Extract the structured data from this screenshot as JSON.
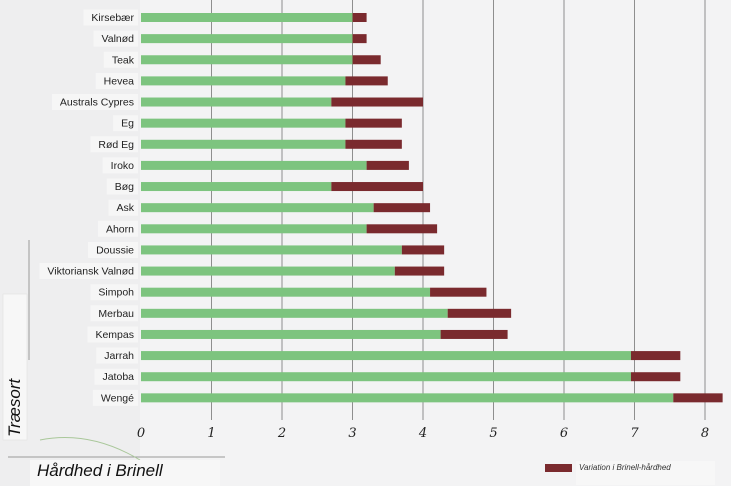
{
  "chart_data": {
    "type": "bar",
    "orientation": "horizontal",
    "stacked": true,
    "categories": [
      "Kirsebær",
      "Valnød",
      "Teak",
      "Hevea",
      "Australs Cypres",
      "Eg",
      "Rød Eg",
      "Iroko",
      "Bøg",
      "Ask",
      "Ahorn",
      "Doussie",
      "Viktoriansk Valnød",
      "Simpoh",
      "Merbau",
      "Kempas",
      "Jarrah",
      "Jatoba",
      "Wengé"
    ],
    "series": [
      {
        "color": "#7dc47f",
        "values": [
          3.0,
          3.0,
          3.0,
          2.9,
          2.7,
          2.9,
          2.9,
          3.2,
          2.7,
          3.3,
          3.2,
          3.7,
          3.6,
          4.1,
          4.35,
          4.25,
          6.95,
          6.95,
          7.55
        ]
      },
      {
        "name": "Variation i Brinell-hårdhed",
        "color": "#7a2a2e",
        "values": [
          0.2,
          0.2,
          0.4,
          0.6,
          1.3,
          0.8,
          0.8,
          0.6,
          1.3,
          0.8,
          1.0,
          0.6,
          0.7,
          0.8,
          0.9,
          0.95,
          0.7,
          0.7,
          0.7
        ]
      }
    ],
    "xlim": [
      0,
      8.5
    ],
    "xticks": [
      "0",
      "1",
      "2",
      "3",
      "4",
      "5",
      "6",
      "7",
      "8"
    ],
    "xlabel": "Hårdhed i Brinell",
    "ylabel": "Træsort",
    "grid": "vertical",
    "legend": "bottom-right"
  }
}
